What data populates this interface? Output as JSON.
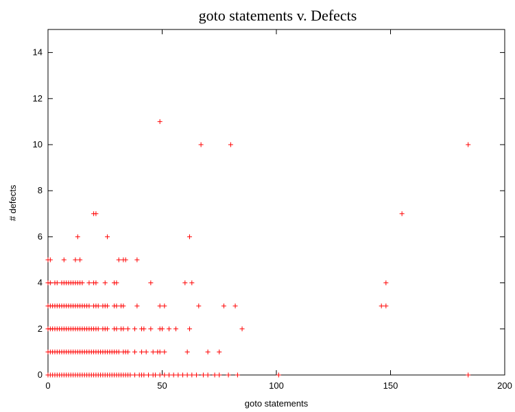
{
  "chart_data": {
    "type": "scatter",
    "title": "goto statements v. Defects",
    "xlabel": "goto statements",
    "ylabel": "# defects",
    "xlim": [
      0,
      200
    ],
    "ylim": [
      0,
      15
    ],
    "xticks": [
      0,
      50,
      100,
      150,
      200
    ],
    "yticks": [
      0,
      2,
      4,
      6,
      8,
      10,
      12,
      14
    ],
    "grid": false,
    "marker": "+",
    "marker_color": "#ff0000",
    "points": [
      [
        0,
        0
      ],
      [
        1,
        0
      ],
      [
        2,
        0
      ],
      [
        3,
        0
      ],
      [
        4,
        0
      ],
      [
        5,
        0
      ],
      [
        6,
        0
      ],
      [
        7,
        0
      ],
      [
        8,
        0
      ],
      [
        9,
        0
      ],
      [
        10,
        0
      ],
      [
        11,
        0
      ],
      [
        12,
        0
      ],
      [
        13,
        0
      ],
      [
        14,
        0
      ],
      [
        15,
        0
      ],
      [
        16,
        0
      ],
      [
        17,
        0
      ],
      [
        18,
        0
      ],
      [
        19,
        0
      ],
      [
        20,
        0
      ],
      [
        21,
        0
      ],
      [
        22,
        0
      ],
      [
        23,
        0
      ],
      [
        24,
        0
      ],
      [
        25,
        0
      ],
      [
        26,
        0
      ],
      [
        27,
        0
      ],
      [
        28,
        0
      ],
      [
        29,
        0
      ],
      [
        30,
        0
      ],
      [
        31,
        0
      ],
      [
        32,
        0
      ],
      [
        33,
        0
      ],
      [
        34,
        0
      ],
      [
        35,
        0
      ],
      [
        36,
        0
      ],
      [
        38,
        0
      ],
      [
        40,
        0
      ],
      [
        41,
        0
      ],
      [
        42,
        0
      ],
      [
        44,
        0
      ],
      [
        46,
        0
      ],
      [
        47,
        0
      ],
      [
        49,
        0
      ],
      [
        51,
        0
      ],
      [
        53,
        0
      ],
      [
        55,
        0
      ],
      [
        57,
        0
      ],
      [
        59,
        0
      ],
      [
        61,
        0
      ],
      [
        63,
        0
      ],
      [
        65,
        0
      ],
      [
        68,
        0
      ],
      [
        70,
        0
      ],
      [
        73,
        0
      ],
      [
        75,
        0
      ],
      [
        79,
        0
      ],
      [
        83,
        0
      ],
      [
        101,
        0
      ],
      [
        184,
        0
      ],
      [
        0,
        1
      ],
      [
        1,
        1
      ],
      [
        2,
        1
      ],
      [
        3,
        1
      ],
      [
        4,
        1
      ],
      [
        5,
        1
      ],
      [
        6,
        1
      ],
      [
        7,
        1
      ],
      [
        8,
        1
      ],
      [
        9,
        1
      ],
      [
        10,
        1
      ],
      [
        11,
        1
      ],
      [
        12,
        1
      ],
      [
        13,
        1
      ],
      [
        14,
        1
      ],
      [
        15,
        1
      ],
      [
        16,
        1
      ],
      [
        17,
        1
      ],
      [
        18,
        1
      ],
      [
        19,
        1
      ],
      [
        20,
        1
      ],
      [
        21,
        1
      ],
      [
        22,
        1
      ],
      [
        23,
        1
      ],
      [
        24,
        1
      ],
      [
        25,
        1
      ],
      [
        26,
        1
      ],
      [
        27,
        1
      ],
      [
        28,
        1
      ],
      [
        29,
        1
      ],
      [
        30,
        1
      ],
      [
        31,
        1
      ],
      [
        33,
        1
      ],
      [
        34,
        1
      ],
      [
        35,
        1
      ],
      [
        38,
        1
      ],
      [
        41,
        1
      ],
      [
        43,
        1
      ],
      [
        46,
        1
      ],
      [
        48,
        1
      ],
      [
        49,
        1
      ],
      [
        51,
        1
      ],
      [
        61,
        1
      ],
      [
        70,
        1
      ],
      [
        75,
        1
      ],
      [
        0,
        2
      ],
      [
        1,
        2
      ],
      [
        2,
        2
      ],
      [
        3,
        2
      ],
      [
        4,
        2
      ],
      [
        5,
        2
      ],
      [
        6,
        2
      ],
      [
        7,
        2
      ],
      [
        8,
        2
      ],
      [
        9,
        2
      ],
      [
        10,
        2
      ],
      [
        11,
        2
      ],
      [
        12,
        2
      ],
      [
        13,
        2
      ],
      [
        14,
        2
      ],
      [
        15,
        2
      ],
      [
        16,
        2
      ],
      [
        17,
        2
      ],
      [
        18,
        2
      ],
      [
        19,
        2
      ],
      [
        20,
        2
      ],
      [
        21,
        2
      ],
      [
        22,
        2
      ],
      [
        24,
        2
      ],
      [
        25,
        2
      ],
      [
        26,
        2
      ],
      [
        29,
        2
      ],
      [
        30,
        2
      ],
      [
        32,
        2
      ],
      [
        33,
        2
      ],
      [
        35,
        2
      ],
      [
        38,
        2
      ],
      [
        41,
        2
      ],
      [
        42,
        2
      ],
      [
        45,
        2
      ],
      [
        49,
        2
      ],
      [
        50,
        2
      ],
      [
        53,
        2
      ],
      [
        56,
        2
      ],
      [
        62,
        2
      ],
      [
        85,
        2
      ],
      [
        0,
        3
      ],
      [
        1,
        3
      ],
      [
        2,
        3
      ],
      [
        3,
        3
      ],
      [
        4,
        3
      ],
      [
        5,
        3
      ],
      [
        6,
        3
      ],
      [
        7,
        3
      ],
      [
        8,
        3
      ],
      [
        9,
        3
      ],
      [
        10,
        3
      ],
      [
        11,
        3
      ],
      [
        12,
        3
      ],
      [
        13,
        3
      ],
      [
        14,
        3
      ],
      [
        15,
        3
      ],
      [
        16,
        3
      ],
      [
        17,
        3
      ],
      [
        18,
        3
      ],
      [
        20,
        3
      ],
      [
        21,
        3
      ],
      [
        22,
        3
      ],
      [
        24,
        3
      ],
      [
        25,
        3
      ],
      [
        26,
        3
      ],
      [
        29,
        3
      ],
      [
        30,
        3
      ],
      [
        32,
        3
      ],
      [
        33,
        3
      ],
      [
        39,
        3
      ],
      [
        49,
        3
      ],
      [
        51,
        3
      ],
      [
        66,
        3
      ],
      [
        77,
        3
      ],
      [
        82,
        3
      ],
      [
        146,
        3
      ],
      [
        148,
        3
      ],
      [
        0,
        4
      ],
      [
        1,
        4
      ],
      [
        3,
        4
      ],
      [
        4,
        4
      ],
      [
        6,
        4
      ],
      [
        7,
        4
      ],
      [
        8,
        4
      ],
      [
        9,
        4
      ],
      [
        10,
        4
      ],
      [
        11,
        4
      ],
      [
        12,
        4
      ],
      [
        13,
        4
      ],
      [
        14,
        4
      ],
      [
        15,
        4
      ],
      [
        18,
        4
      ],
      [
        20,
        4
      ],
      [
        21,
        4
      ],
      [
        25,
        4
      ],
      [
        29,
        4
      ],
      [
        30,
        4
      ],
      [
        45,
        4
      ],
      [
        60,
        4
      ],
      [
        63,
        4
      ],
      [
        148,
        4
      ],
      [
        0,
        5
      ],
      [
        1,
        5
      ],
      [
        7,
        5
      ],
      [
        12,
        5
      ],
      [
        14,
        5
      ],
      [
        31,
        5
      ],
      [
        33,
        5
      ],
      [
        34,
        5
      ],
      [
        39,
        5
      ],
      [
        13,
        6
      ],
      [
        26,
        6
      ],
      [
        62,
        6
      ],
      [
        20,
        7
      ],
      [
        21,
        7
      ],
      [
        155,
        7
      ],
      [
        67,
        10
      ],
      [
        80,
        10
      ],
      [
        184,
        10
      ],
      [
        49,
        11
      ]
    ]
  }
}
